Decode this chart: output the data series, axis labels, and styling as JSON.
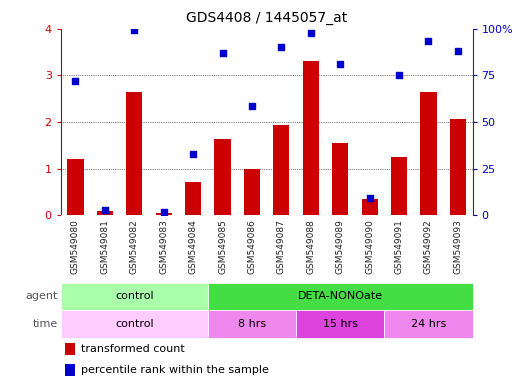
{
  "title": "GDS4408 / 1445057_at",
  "samples": [
    "GSM549080",
    "GSM549081",
    "GSM549082",
    "GSM549083",
    "GSM549084",
    "GSM549085",
    "GSM549086",
    "GSM549087",
    "GSM549088",
    "GSM549089",
    "GSM549090",
    "GSM549091",
    "GSM549092",
    "GSM549093"
  ],
  "bar_values": [
    1.2,
    0.1,
    2.65,
    0.05,
    0.72,
    1.63,
    1.0,
    1.93,
    3.32,
    1.55,
    0.35,
    1.25,
    2.65,
    2.07
  ],
  "dot_values": [
    72,
    3,
    99.5,
    1.75,
    33,
    87,
    58.75,
    90.5,
    97.5,
    81.25,
    9.5,
    75.5,
    93.25,
    88
  ],
  "bar_color": "#cc0000",
  "dot_color": "#0000cc",
  "ylim_left": [
    0,
    4
  ],
  "ylim_right": [
    0,
    100
  ],
  "yticks_left": [
    0,
    1,
    2,
    3,
    4
  ],
  "yticks_right": [
    0,
    25,
    50,
    75,
    100
  ],
  "agent_groups": [
    {
      "label": "control",
      "start": 0,
      "end": 5,
      "color": "#aaffaa"
    },
    {
      "label": "DETA-NONOate",
      "start": 5,
      "end": 14,
      "color": "#44dd44"
    }
  ],
  "time_groups": [
    {
      "label": "control",
      "start": 0,
      "end": 5,
      "color": "#ffccff"
    },
    {
      "label": "8 hrs",
      "start": 5,
      "end": 8,
      "color": "#ee88ee"
    },
    {
      "label": "15 hrs",
      "start": 8,
      "end": 11,
      "color": "#dd44dd"
    },
    {
      "label": "24 hrs",
      "start": 11,
      "end": 14,
      "color": "#ee88ee"
    }
  ],
  "legend_bar_label": "transformed count",
  "legend_dot_label": "percentile rank within the sample",
  "agent_label": "agent",
  "time_label": "time",
  "xtick_bg_color": "#cccccc",
  "background_color": "#ffffff"
}
